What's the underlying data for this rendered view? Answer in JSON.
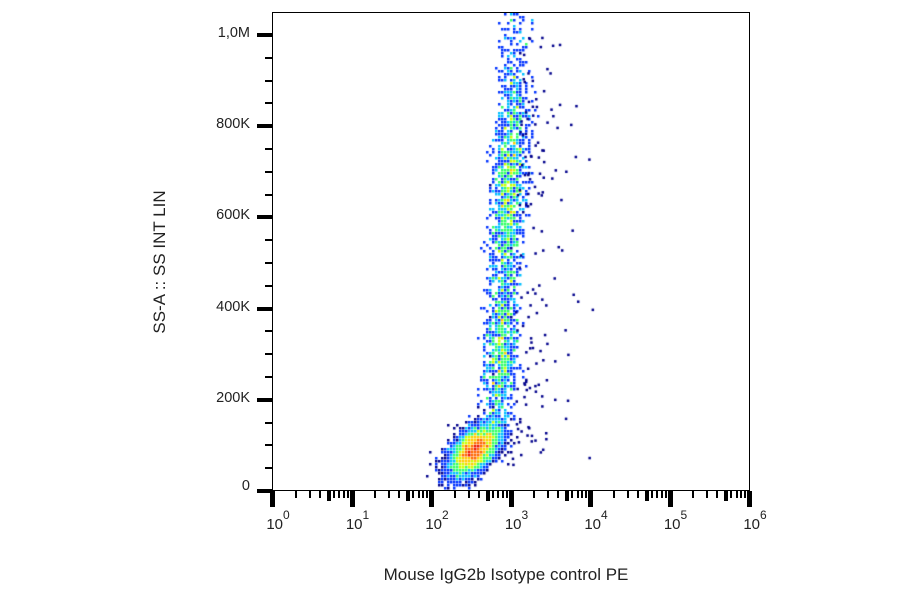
{
  "chart_data": {
    "type": "scatter",
    "subtype": "flow-cytometry-density-dot-plot",
    "title": "",
    "xlabel": "Mouse IgG2b Isotype control PE",
    "ylabel": "SS-A :: SS INT LIN",
    "x_scale": "log",
    "y_scale": "linear",
    "xlim": [
      1,
      1000000
    ],
    "ylim": [
      0,
      1050000
    ],
    "x_ticks": [
      {
        "value": 1,
        "base": "10",
        "exp": "0"
      },
      {
        "value": 10,
        "base": "10",
        "exp": "1"
      },
      {
        "value": 100,
        "base": "10",
        "exp": "2"
      },
      {
        "value": 1000,
        "base": "10",
        "exp": "3"
      },
      {
        "value": 10000,
        "base": "10",
        "exp": "4"
      },
      {
        "value": 100000,
        "base": "10",
        "exp": "5"
      },
      {
        "value": 1000000,
        "base": "10",
        "exp": "6"
      }
    ],
    "y_ticks": [
      {
        "value": 0,
        "label": "0"
      },
      {
        "value": 200000,
        "label": "200K"
      },
      {
        "value": 400000,
        "label": "400K"
      },
      {
        "value": 600000,
        "label": "600K"
      },
      {
        "value": 800000,
        "label": "800K"
      },
      {
        "value": 1000000,
        "label": "1,0M"
      }
    ],
    "grid": false,
    "legend": null,
    "color_map": [
      "#00008b",
      "#0033ff",
      "#00bfff",
      "#33ff66",
      "#ccff00",
      "#ffcc00",
      "#ff6600",
      "#ee1100"
    ],
    "populations": [
      {
        "name": "low-SS dense cluster",
        "center_log10_x": 2.55,
        "center_y": 90000,
        "spread_log10_x": 0.16,
        "spread_y": 30000,
        "count": 5200,
        "peak": "red"
      },
      {
        "name": "high-SS granulocyte stream",
        "center_log10_x": 2.92,
        "y_range": [
          150000,
          1050000
        ],
        "spread_log10_x": 0.1,
        "slope_log10_x_per_M": 0.28,
        "count": 9000,
        "peak": "green-yellow",
        "peak_y": 650000
      },
      {
        "name": "sparse outliers",
        "log10_x_range": [
          3.0,
          4.1
        ],
        "y_range": [
          60000,
          1000000
        ],
        "count": 140
      }
    ]
  },
  "axes": {
    "x_title": "Mouse IgG2b Isotype control PE",
    "y_title": "SS-A :: SS INT LIN"
  }
}
